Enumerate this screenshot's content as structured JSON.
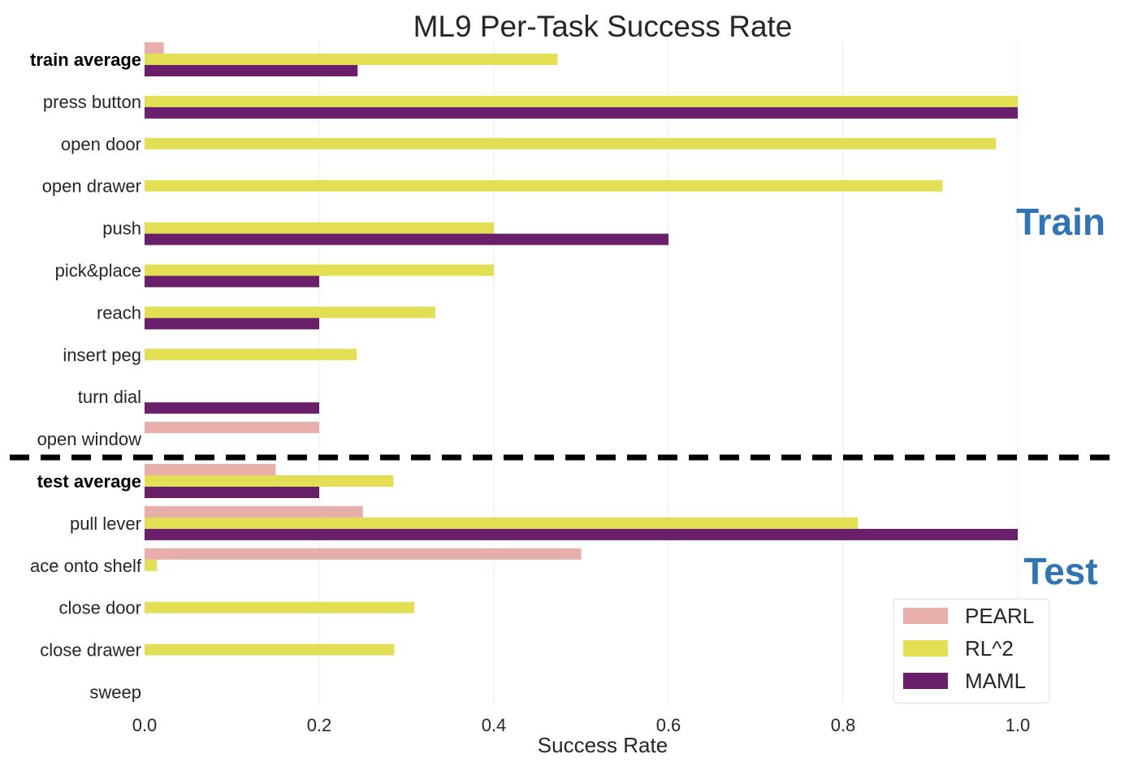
{
  "chart_data": {
    "type": "bar",
    "orientation": "horizontal",
    "title": "ML9 Per-Task Success Rate",
    "xlabel": "Success Rate",
    "ylabel": "",
    "xlim": [
      0,
      1.1
    ],
    "xticks": [
      "0.0",
      "0.2",
      "0.4",
      "0.6",
      "0.8",
      "1.0"
    ],
    "grid": "vertical",
    "legend_position": "lower-right",
    "categories": [
      "train average",
      "press button",
      "open door",
      "open drawer",
      "push",
      "pick&place",
      "reach",
      "insert peg",
      "turn dial",
      "open window",
      "test average",
      "pull lever",
      "ace onto shelf",
      "close door",
      "close drawer",
      "sweep"
    ],
    "bold_categories": [
      "train average",
      "test average"
    ],
    "series": [
      {
        "name": "PEARL",
        "color": "#e8aeaa",
        "values": [
          0.022,
          0,
          0,
          0,
          0,
          0,
          0,
          0,
          0,
          0.2,
          0.15,
          0.25,
          0.5,
          0,
          0,
          0
        ]
      },
      {
        "name": "RL^2",
        "color": "#e2df55",
        "values": [
          0.473,
          1.0,
          0.975,
          0.914,
          0.4,
          0.4,
          0.333,
          0.243,
          0,
          0,
          0.285,
          0.817,
          0.014,
          0.309,
          0.286,
          0
        ]
      },
      {
        "name": "MAML",
        "color": "#6a1f6b",
        "values": [
          0.244,
          1.0,
          0,
          0,
          0.6,
          0.2,
          0.2,
          0,
          0.2,
          0,
          0.2,
          1.0,
          0,
          0,
          0,
          0
        ]
      }
    ],
    "sections": [
      {
        "label": "Train",
        "first": 0,
        "last": 9
      },
      {
        "label": "Test",
        "first": 10,
        "last": 15
      }
    ]
  }
}
